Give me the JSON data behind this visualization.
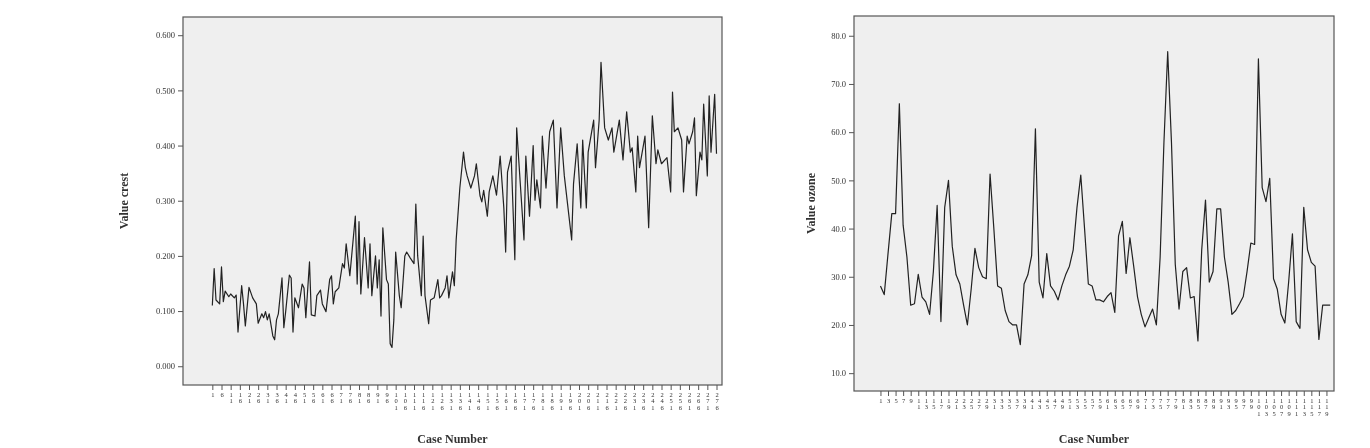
{
  "chart_data": [
    {
      "type": "line",
      "xlabel": "Case Number",
      "ylabel": "Value crest",
      "xlim": [
        -15,
        279
      ],
      "xticks": [
        1,
        6,
        11,
        16,
        21,
        26,
        31,
        36,
        41,
        46,
        51,
        56,
        61,
        66,
        71,
        76,
        81,
        86,
        91,
        96,
        101,
        106,
        111,
        116,
        121,
        126,
        131,
        136,
        141,
        146,
        151,
        156,
        161,
        166,
        171,
        176,
        181,
        186,
        191,
        196,
        201,
        206,
        211,
        216,
        221,
        226,
        231,
        236,
        241,
        246,
        251,
        256,
        261,
        266,
        271,
        276
      ],
      "ylim": [
        -0.034,
        0.633
      ],
      "yticks": [
        {
          "value": 0,
          "label": "0.000"
        },
        {
          "value": 0.1,
          "label": "0.100"
        },
        {
          "value": 0.2,
          "label": "0.200"
        },
        {
          "value": 0.3,
          "label": "0.300"
        },
        {
          "value": 0.4,
          "label": "0.400"
        },
        {
          "value": 0.5,
          "label": "0.500"
        },
        {
          "value": 0.6,
          "label": "0.600"
        }
      ],
      "series": [
        {
          "color": "#222222",
          "x": [
            1,
            2,
            3,
            5,
            6,
            7,
            8,
            10,
            11,
            13,
            14,
            15,
            17,
            18,
            19,
            21,
            23,
            25,
            26,
            28,
            29,
            30,
            31,
            32,
            34,
            35,
            36,
            37,
            39,
            40,
            41,
            43,
            44,
            45,
            46,
            48,
            50,
            51,
            52,
            54,
            55,
            57,
            58,
            60,
            61,
            63,
            65,
            66,
            67,
            68,
            70,
            72,
            73,
            74,
            76,
            77,
            79,
            80,
            81,
            82,
            84,
            86,
            87,
            88,
            90,
            91,
            92,
            93,
            94,
            96,
            97,
            98,
            99,
            100,
            101,
            103,
            104,
            106,
            107,
            109,
            111,
            112,
            113,
            115,
            116,
            117,
            119,
            120,
            122,
            124,
            125,
            126,
            128,
            129,
            130,
            132,
            133,
            134,
            136,
            138,
            139,
            140,
            142,
            144,
            145,
            147,
            148,
            149,
            151,
            152,
            154,
            156,
            158,
            160,
            161,
            162,
            164,
            165,
            166,
            167,
            169,
            171,
            172,
            174,
            176,
            177,
            178,
            180,
            181,
            183,
            185,
            187,
            189,
            191,
            193,
            194,
            197,
            198,
            200,
            202,
            203,
            205,
            206,
            209,
            210,
            212,
            213,
            215,
            217,
            219,
            220,
            223,
            225,
            227,
            229,
            230,
            232,
            233,
            234,
            237,
            239,
            241,
            243,
            244,
            246,
            249,
            251,
            252,
            253,
            255,
            257,
            258,
            260,
            261,
            263,
            264,
            265,
            267,
            268,
            269,
            271,
            272,
            273,
            275,
            276
          ],
          "values": [
            0.11,
            0.177,
            0.12,
            0.113,
            0.18,
            0.117,
            0.136,
            0.126,
            0.131,
            0.124,
            0.129,
            0.062,
            0.146,
            0.113,
            0.073,
            0.143,
            0.124,
            0.113,
            0.078,
            0.095,
            0.088,
            0.099,
            0.084,
            0.095,
            0.055,
            0.048,
            0.084,
            0.095,
            0.16,
            0.07,
            0.099,
            0.165,
            0.16,
            0.062,
            0.124,
            0.106,
            0.149,
            0.142,
            0.088,
            0.189,
            0.093,
            0.091,
            0.128,
            0.138,
            0.113,
            0.099,
            0.157,
            0.164,
            0.113,
            0.135,
            0.142,
            0.186,
            0.178,
            0.222,
            0.164,
            0.2,
            0.272,
            0.149,
            0.262,
            0.131,
            0.233,
            0.142,
            0.222,
            0.128,
            0.2,
            0.142,
            0.193,
            0.091,
            0.251,
            0.157,
            0.149,
            0.041,
            0.034,
            0.084,
            0.207,
            0.128,
            0.106,
            0.2,
            0.207,
            0.196,
            0.186,
            0.294,
            0.2,
            0.128,
            0.236,
            0.128,
            0.077,
            0.12,
            0.124,
            0.157,
            0.124,
            0.128,
            0.142,
            0.164,
            0.124,
            0.171,
            0.146,
            0.229,
            0.323,
            0.388,
            0.36,
            0.345,
            0.323,
            0.345,
            0.367,
            0.309,
            0.298,
            0.319,
            0.272,
            0.316,
            0.345,
            0.31,
            0.381,
            0.287,
            0.207,
            0.352,
            0.381,
            0.287,
            0.193,
            0.432,
            0.33,
            0.229,
            0.381,
            0.272,
            0.4,
            0.301,
            0.338,
            0.287,
            0.417,
            0.323,
            0.425,
            0.446,
            0.287,
            0.432,
            0.345,
            0.316,
            0.229,
            0.33,
            0.403,
            0.287,
            0.41,
            0.287,
            0.388,
            0.446,
            0.36,
            0.446,
            0.551,
            0.432,
            0.41,
            0.432,
            0.388,
            0.446,
            0.374,
            0.461,
            0.388,
            0.396,
            0.316,
            0.417,
            0.36,
            0.417,
            0.251,
            0.454,
            0.367,
            0.392,
            0.367,
            0.378,
            0.316,
            0.497,
            0.425,
            0.432,
            0.41,
            0.316,
            0.417,
            0.403,
            0.425,
            0.45,
            0.309,
            0.388,
            0.374,
            0.475,
            0.345,
            0.49,
            0.388,
            0.493,
            0.385
          ]
        }
      ]
    },
    {
      "type": "line",
      "xlabel": "Case Number",
      "ylabel": "Value ozone",
      "xlim": [
        -6,
        121
      ],
      "xticks": [
        1,
        3,
        5,
        7,
        9,
        11,
        13,
        15,
        17,
        19,
        21,
        23,
        25,
        27,
        29,
        31,
        33,
        35,
        37,
        39,
        41,
        43,
        45,
        47,
        49,
        51,
        53,
        55,
        57,
        59,
        61,
        63,
        65,
        67,
        69,
        71,
        73,
        75,
        77,
        79,
        81,
        83,
        85,
        87,
        89,
        91,
        93,
        95,
        97,
        99,
        101,
        103,
        105,
        107,
        109,
        111,
        113,
        115,
        117,
        119
      ],
      "ylim": [
        6.3,
        84.1
      ],
      "yticks": [
        {
          "value": 10,
          "label": "10.0"
        },
        {
          "value": 20,
          "label": "20.0"
        },
        {
          "value": 30,
          "label": "30.0"
        },
        {
          "value": 40,
          "label": "40.0"
        },
        {
          "value": 50,
          "label": "50.0"
        },
        {
          "value": 60,
          "label": "60.0"
        },
        {
          "value": 70,
          "label": "70.0"
        },
        {
          "value": 80,
          "label": "80.0"
        }
      ],
      "series": [
        {
          "color": "#222222",
          "x": [
            1,
            2,
            3,
            4,
            5,
            6,
            7,
            8,
            9,
            10,
            11,
            12,
            13,
            14,
            15,
            16,
            17,
            18,
            19,
            20,
            21,
            22,
            23,
            24,
            25,
            26,
            27,
            28,
            29,
            30,
            31,
            32,
            33,
            34,
            35,
            36,
            37,
            38,
            39,
            40,
            41,
            42,
            43,
            44,
            45,
            46,
            47,
            48,
            49,
            50,
            51,
            52,
            53,
            54,
            55,
            56,
            57,
            58,
            59,
            60,
            61,
            62,
            63,
            64,
            65,
            66,
            67,
            68,
            69,
            70,
            71,
            72,
            73,
            74,
            75,
            76,
            77,
            78,
            79,
            80,
            81,
            82,
            83,
            84,
            85,
            86,
            87,
            88,
            89,
            90,
            91,
            92,
            93,
            94,
            95,
            96,
            97,
            98,
            99,
            100,
            101,
            102,
            103,
            104,
            105,
            106,
            107,
            108,
            109,
            110,
            111,
            112,
            113,
            114,
            115,
            116,
            117,
            118,
            119,
            120
          ],
          "values": [
            28.1,
            26.3,
            34.8,
            43.1,
            43.1,
            65.9,
            40.7,
            34.1,
            24.1,
            24.4,
            30.5,
            25.8,
            24.8,
            22.2,
            31.1,
            44.8,
            20.7,
            44.4,
            50,
            36.3,
            30.4,
            28.5,
            24.1,
            20,
            27.4,
            35.9,
            31.9,
            30,
            29.6,
            51.3,
            40,
            28.1,
            27.6,
            23,
            20.7,
            20,
            20,
            15.9,
            28.5,
            30.4,
            34.4,
            60.7,
            28.9,
            25.6,
            34.8,
            28.1,
            27,
            25.2,
            28.1,
            30.4,
            32.2,
            35.6,
            44.4,
            51.1,
            40,
            28.5,
            28.1,
            25.2,
            25.2,
            24.8,
            25.9,
            26.7,
            22.6,
            38.5,
            41.5,
            30.7,
            38.1,
            32.2,
            25.9,
            22.2,
            19.6,
            21.5,
            23.3,
            20,
            34.1,
            57.8,
            76.7,
            57.8,
            32.6,
            23.3,
            31.1,
            31.9,
            25.6,
            25.9,
            16.7,
            35.6,
            45.9,
            28.9,
            31.1,
            44.1,
            44.1,
            34.1,
            28.9,
            22.2,
            23,
            24.4,
            25.9,
            31.1,
            37,
            36.7,
            75.2,
            48.5,
            45.6,
            50.4,
            29.6,
            27.4,
            22.2,
            20.4,
            28.9,
            38.9,
            20.7,
            19.3,
            44.4,
            35.6,
            33,
            32.2,
            17,
            24.1,
            24.1,
            24.1
          ]
        }
      ]
    }
  ]
}
